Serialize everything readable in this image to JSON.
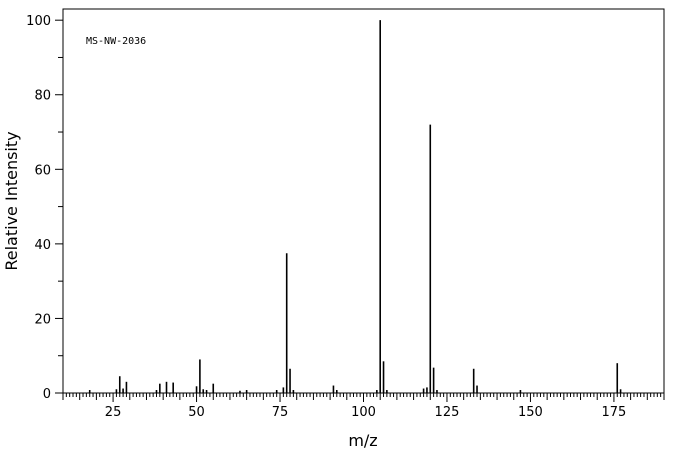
{
  "chart_data": {
    "type": "bar",
    "title": "",
    "annotation": "MS-NW-2036",
    "xlabel": "m/z",
    "ylabel": "Relative Intensity",
    "xlim": [
      10,
      190
    ],
    "ylim": [
      0,
      103
    ],
    "x_ticks": [
      25,
      50,
      75,
      100,
      125,
      150,
      175
    ],
    "x_tick_labels": [
      "25",
      "50",
      "75",
      "100",
      "125",
      "150",
      "175"
    ],
    "y_ticks": [
      0,
      20,
      40,
      60,
      80,
      100
    ],
    "y_tick_labels": [
      "0",
      "20",
      "40",
      "60",
      "80",
      "100"
    ],
    "grid": false,
    "peaks": [
      {
        "mz": 18,
        "intensity": 0.8
      },
      {
        "mz": 26,
        "intensity": 1.0
      },
      {
        "mz": 27,
        "intensity": 4.5
      },
      {
        "mz": 28,
        "intensity": 1.2
      },
      {
        "mz": 29,
        "intensity": 3.0
      },
      {
        "mz": 38,
        "intensity": 0.8
      },
      {
        "mz": 39,
        "intensity": 2.5
      },
      {
        "mz": 41,
        "intensity": 3.0
      },
      {
        "mz": 43,
        "intensity": 2.8
      },
      {
        "mz": 50,
        "intensity": 1.8
      },
      {
        "mz": 51,
        "intensity": 9.0
      },
      {
        "mz": 52,
        "intensity": 1.0
      },
      {
        "mz": 53,
        "intensity": 0.8
      },
      {
        "mz": 55,
        "intensity": 2.5
      },
      {
        "mz": 63,
        "intensity": 0.6
      },
      {
        "mz": 65,
        "intensity": 0.8
      },
      {
        "mz": 74,
        "intensity": 0.8
      },
      {
        "mz": 76,
        "intensity": 1.5
      },
      {
        "mz": 77,
        "intensity": 37.5
      },
      {
        "mz": 78,
        "intensity": 6.5
      },
      {
        "mz": 79,
        "intensity": 0.8
      },
      {
        "mz": 91,
        "intensity": 2.0
      },
      {
        "mz": 92,
        "intensity": 0.8
      },
      {
        "mz": 104,
        "intensity": 0.8
      },
      {
        "mz": 105,
        "intensity": 100
      },
      {
        "mz": 106,
        "intensity": 8.5
      },
      {
        "mz": 107,
        "intensity": 0.8
      },
      {
        "mz": 118,
        "intensity": 1.2
      },
      {
        "mz": 119,
        "intensity": 1.5
      },
      {
        "mz": 120,
        "intensity": 72
      },
      {
        "mz": 121,
        "intensity": 6.8
      },
      {
        "mz": 122,
        "intensity": 0.8
      },
      {
        "mz": 133,
        "intensity": 6.5
      },
      {
        "mz": 134,
        "intensity": 2.0
      },
      {
        "mz": 147,
        "intensity": 0.8
      },
      {
        "mz": 176,
        "intensity": 8.0
      },
      {
        "mz": 177,
        "intensity": 1.0
      }
    ]
  }
}
